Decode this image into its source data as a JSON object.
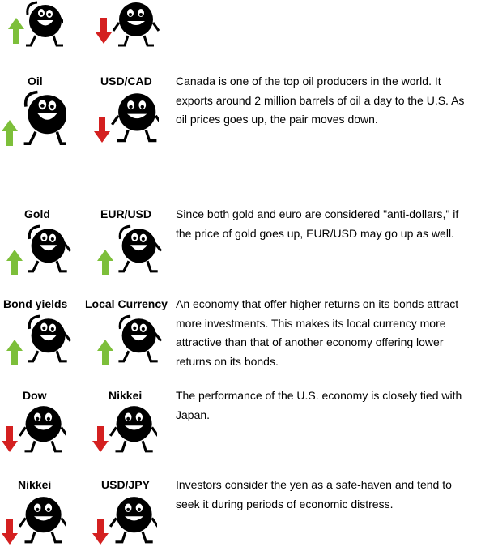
{
  "rows": [
    {
      "left": {
        "label": "",
        "trend": "up"
      },
      "right": {
        "label": "",
        "trend": "down"
      },
      "description": ""
    },
    {
      "left": {
        "label": "Oil",
        "trend": "up"
      },
      "right": {
        "label": "USD/CAD",
        "trend": "down"
      },
      "description": "Canada is one of the top oil producers in the world. It exports around 2 million barrels of oil a day to the U.S. As oil prices goes up, the pair moves down."
    },
    {
      "left": {
        "label": "Gold",
        "trend": "up"
      },
      "right": {
        "label": "EUR/USD",
        "trend": "up"
      },
      "description": "Since both gold and euro are considered \"anti-dollars,\" if the price of gold goes up, EUR/USD may go up as well."
    },
    {
      "left": {
        "label": "Bond yields",
        "trend": "up"
      },
      "right": {
        "label": "Local Currency",
        "trend": "up"
      },
      "description": "An economy that offer higher returns on its bonds attract more investments. This makes its local currency more attractive than that of another economy offering lower returns on its bonds."
    },
    {
      "left": {
        "label": "Dow",
        "trend": "down"
      },
      "right": {
        "label": "Nikkei",
        "trend": "down"
      },
      "description": "The performance of the U.S. economy is closely tied with Japan."
    },
    {
      "left": {
        "label": "Nikkei",
        "trend": "down"
      },
      "right": {
        "label": "USD/JPY",
        "trend": "down"
      },
      "description": "Investors consider the yen as a safe-haven and tend to seek it during periods of economic distress."
    }
  ],
  "colors": {
    "up_arrow": "#7dbf3a",
    "down_arrow": "#d42020",
    "character": "#000000"
  }
}
